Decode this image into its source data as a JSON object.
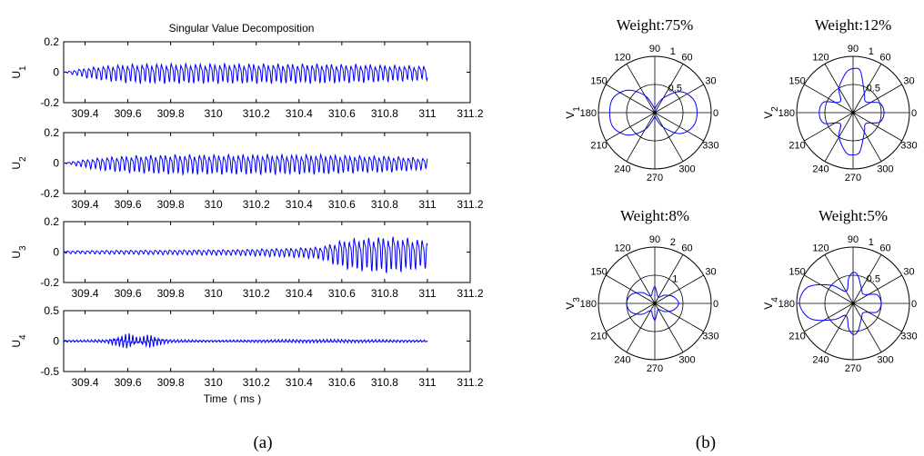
{
  "panel_labels": {
    "a": "(a)",
    "b": "(b)"
  },
  "chart_data": [
    {
      "type": "line",
      "title": "Singular Value Decomposition",
      "xlabel": "Time  ( ms )",
      "xlim": [
        309.3,
        311.2
      ],
      "xtick_labels": [
        "309.4",
        "309.6",
        "309.8",
        "310",
        "310.2",
        "310.4",
        "310.6",
        "310.8",
        "311",
        "311.2"
      ],
      "color": "#0000ff",
      "grid": false,
      "subplots": [
        {
          "ylabel": "U",
          "ylabel_sub": "1",
          "ylim": [
            -0.2,
            0.2
          ],
          "ytick_labels": [
            "-0.2",
            "0",
            "0.2"
          ],
          "x": [
            309.3,
            309.4,
            309.5,
            309.6,
            309.7,
            309.8,
            309.9,
            310.0,
            310.1,
            310.2,
            310.3,
            310.4,
            310.5,
            310.6,
            310.7,
            310.8,
            310.9,
            311.0
          ],
          "y": [
            0.0,
            0.035,
            0.055,
            0.065,
            0.07,
            0.07,
            0.07,
            0.07,
            0.07,
            0.07,
            0.07,
            0.07,
            0.07,
            0.065,
            0.065,
            0.06,
            0.055,
            0.05
          ],
          "note": "oscillation envelope amplitude, cycle ~0.0227 ms"
        },
        {
          "ylabel": "U",
          "ylabel_sub": "2",
          "ylim": [
            -0.2,
            0.2
          ],
          "ytick_labels": [
            "-0.2",
            "0",
            "0.2"
          ],
          "x": [
            309.3,
            309.4,
            309.5,
            309.6,
            309.7,
            309.8,
            309.9,
            310.0,
            310.1,
            310.2,
            310.3,
            310.4,
            310.5,
            310.6,
            310.7,
            310.8,
            310.9,
            311.0
          ],
          "y": [
            0.0,
            0.03,
            0.05,
            0.06,
            0.065,
            0.07,
            0.07,
            0.07,
            0.07,
            0.07,
            0.07,
            0.07,
            0.07,
            0.065,
            0.06,
            0.06,
            0.05,
            0.04
          ],
          "note": "oscillation envelope amplitude, cycle ~0.0227 ms"
        },
        {
          "ylabel": "U",
          "ylabel_sub": "3",
          "ylim": [
            -0.2,
            0.2
          ],
          "ytick_labels": [
            "-0.2",
            "0",
            "0.2"
          ],
          "x": [
            309.3,
            309.4,
            309.5,
            309.6,
            309.7,
            309.8,
            309.9,
            310.0,
            310.1,
            310.2,
            310.3,
            310.4,
            310.5,
            310.55,
            310.6,
            310.7,
            310.8,
            310.9,
            311.0
          ],
          "y": [
            0.01,
            0.012,
            0.014,
            0.015,
            0.016,
            0.017,
            0.018,
            0.02,
            0.02,
            0.025,
            0.03,
            0.035,
            0.045,
            0.07,
            0.1,
            0.12,
            0.13,
            0.12,
            0.1
          ],
          "note": "oscillation envelope amplitude, strong burst after 310.55 ms"
        },
        {
          "ylabel": "U",
          "ylabel_sub": "4",
          "ylim": [
            -0.5,
            0.5
          ],
          "ytick_labels": [
            "-0.5",
            "0",
            "0.5"
          ],
          "x": [
            309.3,
            309.4,
            309.5,
            309.55,
            309.6,
            309.65,
            309.7,
            309.75,
            309.8,
            310.0,
            310.2,
            310.4,
            310.6,
            310.8,
            311.0
          ],
          "y": [
            0.02,
            0.02,
            0.03,
            0.08,
            0.15,
            0.05,
            0.13,
            0.06,
            0.03,
            0.02,
            0.025,
            0.03,
            0.03,
            0.025,
            0.02
          ],
          "note": "oscillation envelope amplitude, bursts near 309.6 and 309.7 ms"
        }
      ]
    },
    {
      "type": "polar",
      "color": "#0000ff",
      "angle_labels": [
        "90",
        "60",
        "30",
        "0",
        "330",
        "300",
        "270",
        "240",
        "210",
        "180",
        "150",
        "120"
      ],
      "subplots": [
        {
          "title": "Weight:75%",
          "ylabel": "V",
          "ylabel_sub": "1",
          "rmax": 1,
          "rtick_labels": [
            "0.5",
            "1"
          ],
          "angles_deg": [
            0,
            20,
            40,
            60,
            80,
            90,
            100,
            120,
            140,
            160,
            180,
            200,
            220,
            240,
            260,
            270,
            280,
            300,
            320,
            340
          ],
          "r": [
            0.75,
            0.72,
            0.58,
            0.3,
            0.1,
            0.05,
            0.1,
            0.35,
            0.62,
            0.78,
            0.8,
            0.78,
            0.62,
            0.35,
            0.1,
            0.05,
            0.1,
            0.3,
            0.58,
            0.72
          ]
        },
        {
          "title": "Weight:12%",
          "ylabel": "V",
          "ylabel_sub": "2",
          "rmax": 1,
          "rtick_labels": [
            "0.5",
            "1"
          ],
          "angles_deg": [
            0,
            20,
            40,
            60,
            80,
            90,
            100,
            120,
            140,
            160,
            180,
            200,
            220,
            240,
            260,
            270,
            280,
            300,
            320,
            340
          ],
          "r": [
            0.55,
            0.5,
            0.3,
            0.4,
            0.75,
            0.78,
            0.72,
            0.5,
            0.3,
            0.55,
            0.6,
            0.55,
            0.3,
            0.5,
            0.72,
            0.75,
            0.7,
            0.4,
            0.3,
            0.5
          ]
        },
        {
          "title": "Weight:8%",
          "ylabel": "V",
          "ylabel_sub": "3",
          "rmax": 2,
          "rtick_labels": [
            "1",
            "2"
          ],
          "angles_deg": [
            0,
            20,
            40,
            60,
            80,
            90,
            100,
            120,
            140,
            160,
            180,
            200,
            220,
            240,
            260,
            270,
            280,
            300,
            320,
            340
          ],
          "r": [
            0.85,
            0.7,
            0.45,
            0.25,
            0.4,
            0.6,
            0.45,
            0.3,
            0.6,
            0.9,
            1.0,
            0.9,
            0.6,
            0.3,
            0.45,
            0.6,
            0.4,
            0.25,
            0.45,
            0.7
          ]
        },
        {
          "title": "Weight:5%",
          "ylabel": "V",
          "ylabel_sub": "4",
          "rmax": 1,
          "rtick_labels": [
            "0.5",
            "1"
          ],
          "angles_deg": [
            0,
            20,
            40,
            60,
            80,
            90,
            100,
            120,
            140,
            160,
            180,
            200,
            220,
            240,
            260,
            270,
            280,
            300,
            320,
            340
          ],
          "r": [
            0.5,
            0.45,
            0.25,
            0.3,
            0.5,
            0.55,
            0.45,
            0.25,
            0.5,
            0.85,
            0.95,
            0.8,
            0.45,
            0.25,
            0.45,
            0.55,
            0.5,
            0.3,
            0.25,
            0.45
          ]
        }
      ]
    }
  ]
}
